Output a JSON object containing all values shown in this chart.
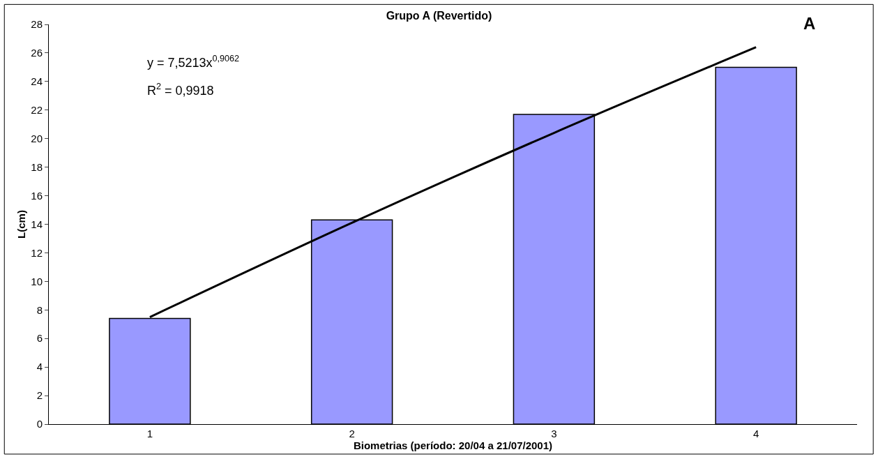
{
  "chart_data": {
    "type": "bar",
    "title": "Grupo A (Revertido)",
    "xlabel": "Biometrias (período: 20/04 a 21/07/2001)",
    "ylabel": "L(cm)",
    "x": [
      1,
      2,
      3,
      4
    ],
    "xlim": [
      0.5,
      4.5
    ],
    "xticks": [
      1,
      2,
      3,
      4
    ],
    "ylim": [
      0,
      28
    ],
    "yticks": [
      0,
      2,
      4,
      6,
      8,
      10,
      12,
      14,
      16,
      18,
      20,
      22,
      24,
      26,
      28
    ],
    "series": [
      {
        "color": "#9999ff",
        "values": [
          7.4,
          14.3,
          21.7,
          25.0
        ]
      },
      {
        "type": "line",
        "color": "#000000",
        "x": [
          1,
          2,
          3,
          4
        ],
        "values": [
          7.5,
          14.1,
          20.4,
          26.4
        ],
        "marker": "none"
      }
    ],
    "annotations": [
      "y = 7,5213x$^{0,9062}$",
      "R$^{2}$ = 0,9918",
      "A"
    ]
  }
}
